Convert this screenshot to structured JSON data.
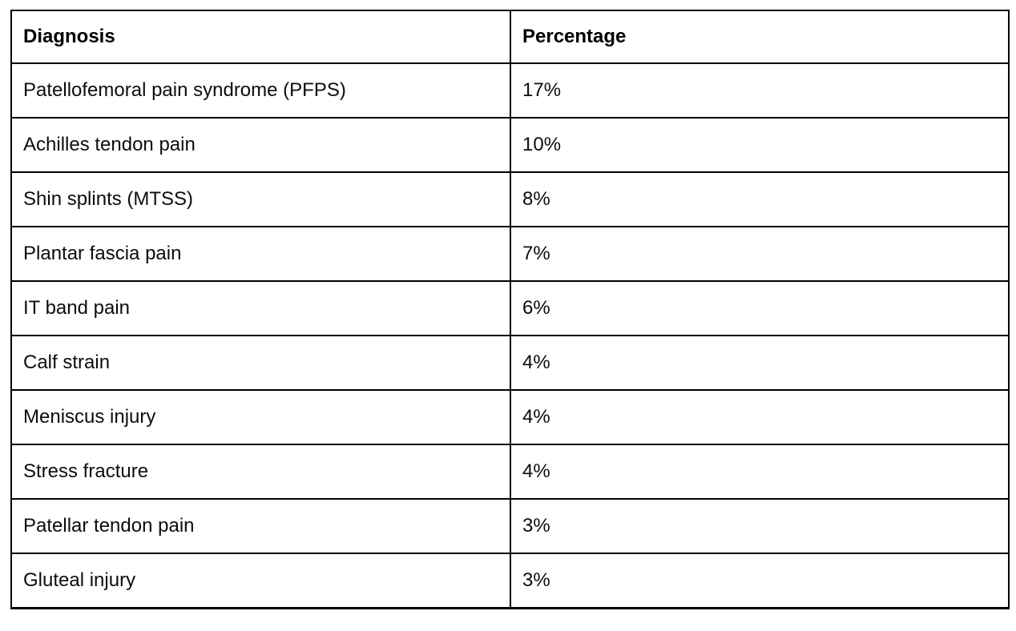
{
  "colors": {
    "border": "#000000",
    "text": "#0d0d0d",
    "background": "#ffffff"
  },
  "chart_data": {
    "type": "table",
    "title": "",
    "columns": [
      "Diagnosis",
      "Percentage"
    ],
    "rows": [
      [
        "Patellofemoral pain syndrome (PFPS)",
        "17%"
      ],
      [
        "Achilles tendon pain",
        "10%"
      ],
      [
        "Shin splints (MTSS)",
        "8%"
      ],
      [
        "Plantar fascia pain",
        "7%"
      ],
      [
        "IT band pain",
        "6%"
      ],
      [
        "Calf strain",
        "4%"
      ],
      [
        "Meniscus injury",
        "4%"
      ],
      [
        "Stress fracture",
        "4%"
      ],
      [
        "Patellar tendon pain",
        "3%"
      ],
      [
        "Gluteal injury",
        "3%"
      ]
    ],
    "categories": [
      "Patellofemoral pain syndrome (PFPS)",
      "Achilles tendon pain",
      "Shin splints (MTSS)",
      "Plantar fascia pain",
      "IT band pain",
      "Calf strain",
      "Meniscus injury",
      "Stress fracture",
      "Patellar tendon pain",
      "Gluteal injury"
    ],
    "values": [
      17,
      10,
      8,
      7,
      6,
      4,
      4,
      4,
      3,
      3
    ],
    "value_unit": "%"
  }
}
